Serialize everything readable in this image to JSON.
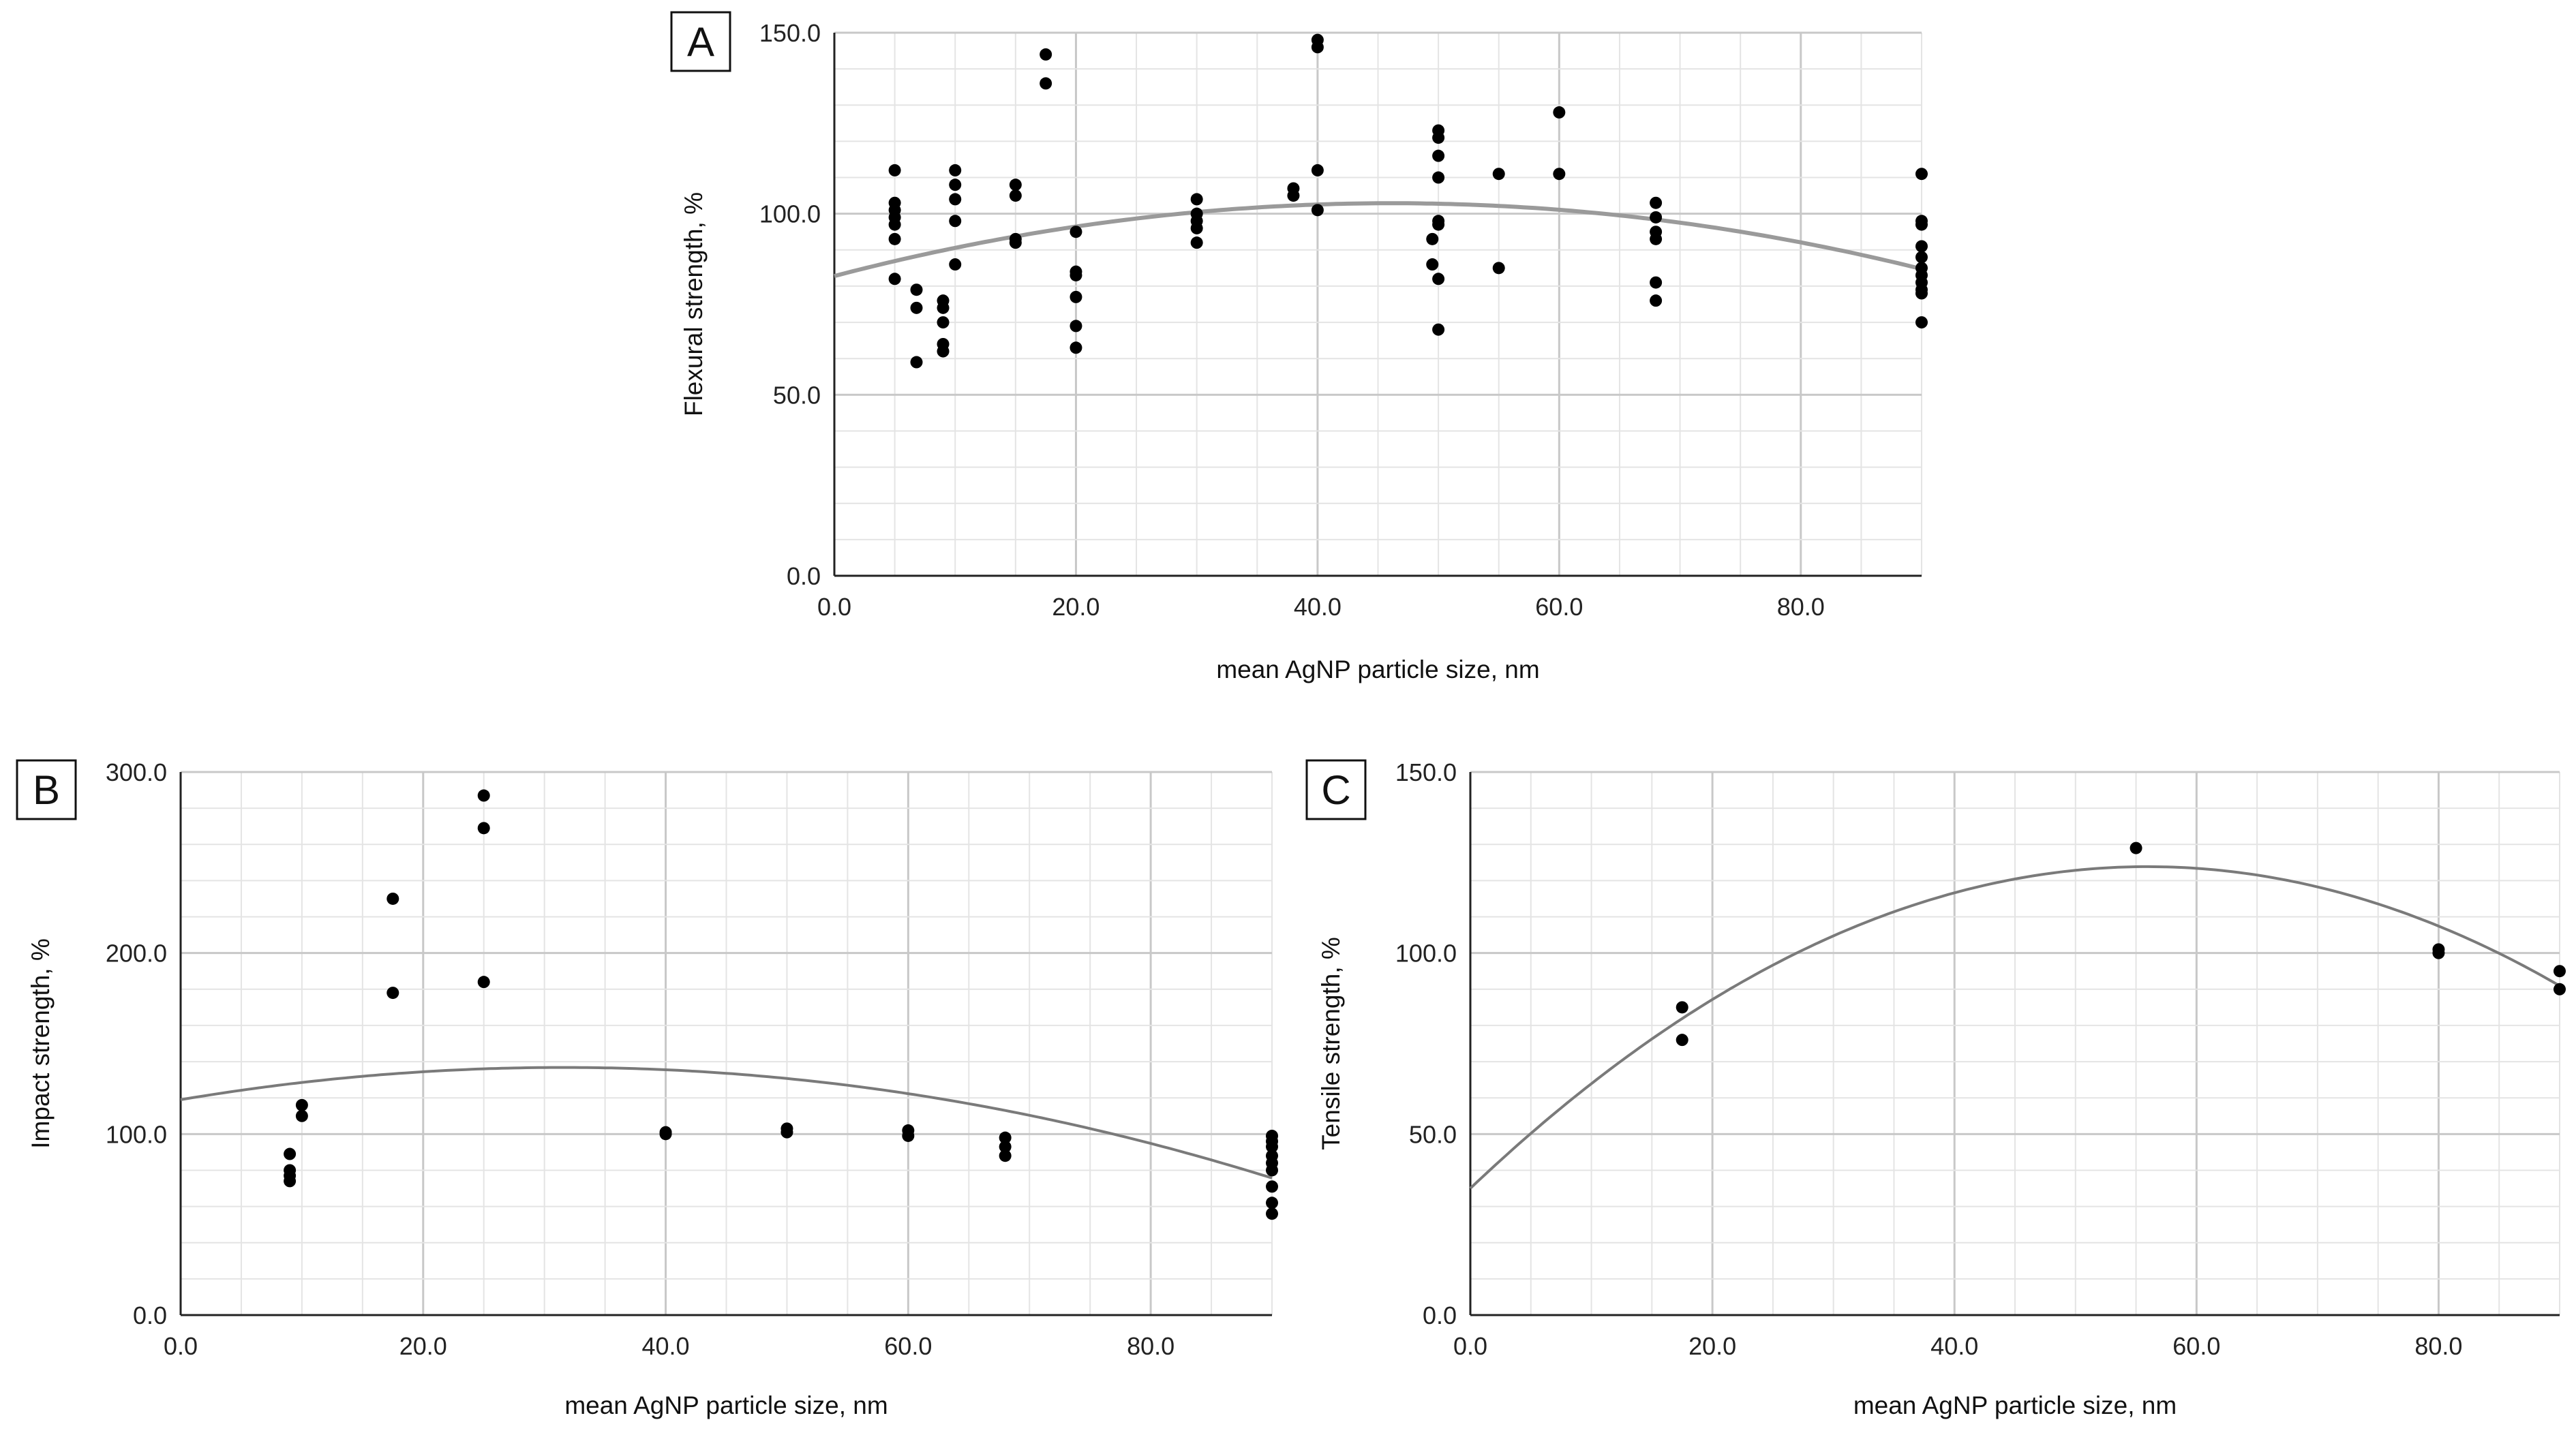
{
  "colors": {
    "grid_major": "#c8c8c8",
    "grid_minor": "#e4e4e4",
    "axis": "#222222",
    "point": "#000000",
    "fit_a": "#9a9a9a",
    "fit_bc": "#7a7a7a"
  },
  "chart_data": [
    {
      "id": "A",
      "type": "scatter",
      "panel_label": "A",
      "xlabel": "mean AgNP particle size, nm",
      "ylabel": "Flexural strength, %",
      "xlim": [
        0,
        90
      ],
      "ylim": [
        0,
        150
      ],
      "xticks": [
        "0.0",
        "20.0",
        "40.0",
        "60.0",
        "80.0"
      ],
      "yticks": [
        "0.0",
        "50.0",
        "100.0",
        "150.0"
      ],
      "grid": true,
      "points": [
        [
          5,
          112
        ],
        [
          5,
          103
        ],
        [
          5,
          101
        ],
        [
          5,
          99
        ],
        [
          5,
          97
        ],
        [
          5,
          93
        ],
        [
          5,
          82
        ],
        [
          6.8,
          79
        ],
        [
          6.8,
          74
        ],
        [
          6.8,
          59
        ],
        [
          9,
          76
        ],
        [
          9,
          74
        ],
        [
          9,
          70
        ],
        [
          9,
          64
        ],
        [
          9,
          62
        ],
        [
          10,
          112
        ],
        [
          10,
          108
        ],
        [
          10,
          104
        ],
        [
          10,
          98
        ],
        [
          10,
          86
        ],
        [
          15,
          108
        ],
        [
          15,
          105
        ],
        [
          15,
          93
        ],
        [
          15,
          92
        ],
        [
          17.5,
          144
        ],
        [
          17.5,
          136
        ],
        [
          20,
          95
        ],
        [
          20,
          84
        ],
        [
          20,
          83
        ],
        [
          20,
          77
        ],
        [
          20,
          69
        ],
        [
          20,
          63
        ],
        [
          30,
          104
        ],
        [
          30,
          100
        ],
        [
          30,
          98
        ],
        [
          30,
          96
        ],
        [
          30,
          92
        ],
        [
          38,
          107
        ],
        [
          38,
          105
        ],
        [
          40,
          148
        ],
        [
          40,
          146
        ],
        [
          40,
          112
        ],
        [
          40,
          101
        ],
        [
          50,
          123
        ],
        [
          50,
          121
        ],
        [
          50,
          116
        ],
        [
          50,
          110
        ],
        [
          50,
          98
        ],
        [
          50,
          97
        ],
        [
          50,
          82
        ],
        [
          50,
          68
        ],
        [
          49.5,
          93
        ],
        [
          49.5,
          86
        ],
        [
          55,
          111
        ],
        [
          55,
          85
        ],
        [
          60,
          128
        ],
        [
          60,
          111
        ],
        [
          68,
          103
        ],
        [
          68,
          99
        ],
        [
          68,
          95
        ],
        [
          68,
          93
        ],
        [
          68,
          81
        ],
        [
          68,
          76
        ],
        [
          90,
          111
        ],
        [
          90,
          98
        ],
        [
          90,
          97
        ],
        [
          90,
          91
        ],
        [
          90,
          88
        ],
        [
          90,
          85
        ],
        [
          90,
          83
        ],
        [
          90,
          81
        ],
        [
          90,
          79
        ],
        [
          90,
          78
        ],
        [
          90,
          70
        ]
      ],
      "fit": {
        "type": "quadratic",
        "a": -0.00944,
        "b": 0.8712,
        "c": 82.8
      }
    },
    {
      "id": "B",
      "type": "scatter",
      "panel_label": "B",
      "xlabel": "mean AgNP particle size, nm",
      "ylabel": "Impact strength, %",
      "xlim": [
        0,
        90
      ],
      "ylim": [
        0,
        300
      ],
      "xticks": [
        "0.0",
        "20.0",
        "40.0",
        "60.0",
        "80.0"
      ],
      "yticks": [
        "0.0",
        "100.0",
        "200.0",
        "300.0"
      ],
      "grid": true,
      "points": [
        [
          9,
          89
        ],
        [
          9,
          80
        ],
        [
          9,
          77
        ],
        [
          9,
          74
        ],
        [
          10,
          116
        ],
        [
          10,
          110
        ],
        [
          17.5,
          230
        ],
        [
          17.5,
          178
        ],
        [
          25,
          287
        ],
        [
          25,
          269
        ],
        [
          25,
          184
        ],
        [
          40,
          101
        ],
        [
          40,
          100
        ],
        [
          50,
          103
        ],
        [
          50,
          101
        ],
        [
          60,
          102
        ],
        [
          60,
          99
        ],
        [
          68,
          98
        ],
        [
          68,
          93
        ],
        [
          68,
          88
        ],
        [
          90,
          99
        ],
        [
          90,
          96
        ],
        [
          90,
          93
        ],
        [
          90,
          88
        ],
        [
          90,
          84
        ],
        [
          90,
          80
        ],
        [
          90,
          71
        ],
        [
          90,
          62
        ],
        [
          90,
          56
        ]
      ],
      "fit": {
        "type": "quadratic",
        "a": -0.01788,
        "b": 1.128,
        "c": 119
      }
    },
    {
      "id": "C",
      "type": "scatter",
      "panel_label": "C",
      "xlabel": "mean AgNP particle size, nm",
      "ylabel": "Tensile strength, %",
      "xlim": [
        0,
        90
      ],
      "ylim": [
        0,
        150
      ],
      "xticks": [
        "0.0",
        "20.0",
        "40.0",
        "60.0",
        "80.0"
      ],
      "yticks": [
        "0.0",
        "50.0",
        "100.0",
        "150.0"
      ],
      "grid": true,
      "points": [
        [
          17.5,
          85
        ],
        [
          17.5,
          76
        ],
        [
          55,
          129
        ],
        [
          80,
          101
        ],
        [
          80,
          100
        ],
        [
          90,
          95
        ],
        [
          90,
          90
        ]
      ],
      "fit": {
        "type": "quadratic",
        "a": -0.02838,
        "b": 3.176,
        "c": 35
      }
    }
  ]
}
